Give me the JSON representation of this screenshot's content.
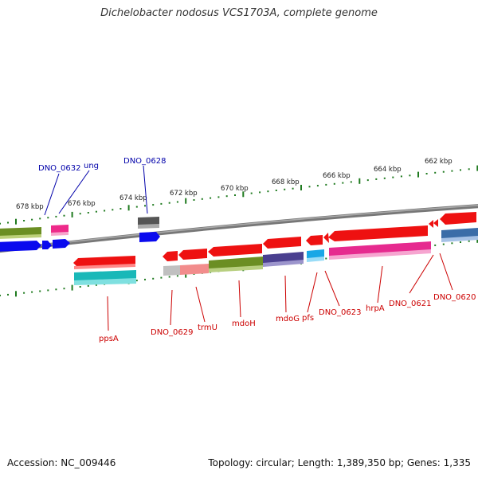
{
  "header": {
    "title": "Dichelobacter nodosus VCS1703A, complete genome"
  },
  "footer": {
    "accession": "Accession: NC_009446",
    "topology": "Topology: circular; Length: 1,389,350 bp; Genes: 1,335"
  },
  "colors": {
    "backbone": "#888888",
    "tick": "#1f7a1f",
    "label_forward": "#0000aa",
    "label_reverse": "#cc0000",
    "tick_label": "#222222"
  },
  "scale": {
    "unit": "kbp",
    "labels": [
      "678 kbp",
      "676 kbp",
      "674 kbp",
      "672 kbp",
      "670 kbp",
      "668 kbp",
      "666 kbp",
      "664 kbp",
      "662 kbp"
    ]
  },
  "genes": {
    "forward_labels": [
      "DNO_0632",
      "ung",
      "DNO_0628"
    ],
    "reverse_labels": [
      "ppsA",
      "DNO_0629",
      "trmU",
      "mdoH",
      "mdoG",
      "pfs",
      "DNO_0623",
      "hrpA",
      "DNO_0621",
      "DNO_0620"
    ]
  }
}
